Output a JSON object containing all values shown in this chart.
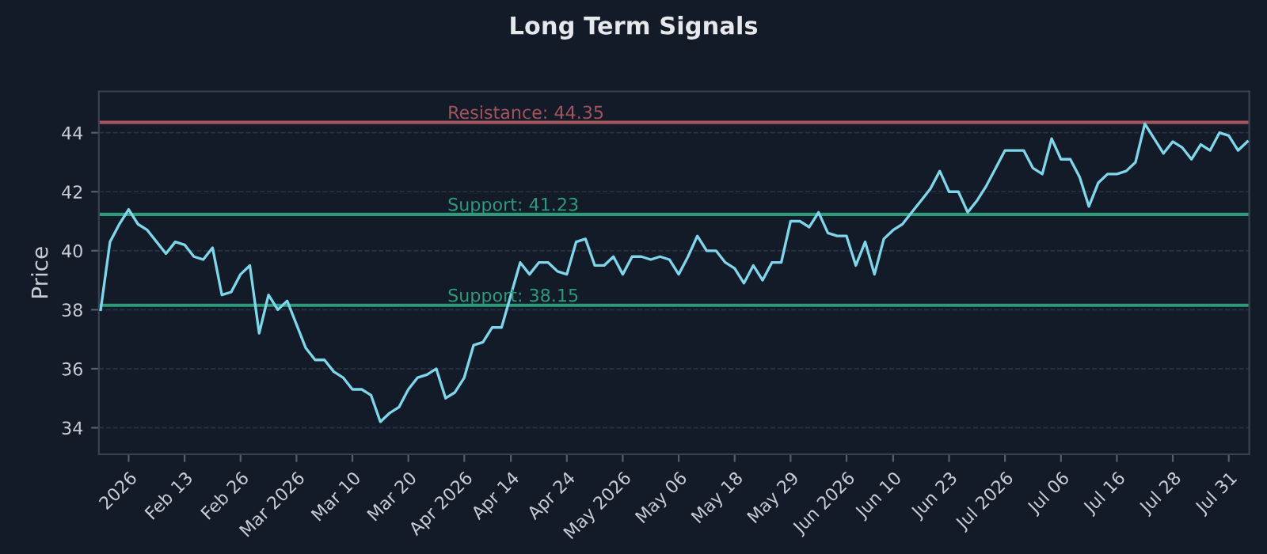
{
  "chart_data": {
    "type": "line",
    "title": "Long Term Signals",
    "ylabel": "Price",
    "categories": [
      null,
      null,
      null,
      "2026",
      null,
      null,
      null,
      null,
      null,
      "Feb 13",
      null,
      null,
      null,
      null,
      null,
      "Feb 26",
      null,
      null,
      null,
      null,
      null,
      "Mar 2026",
      null,
      null,
      null,
      null,
      null,
      "Mar 10",
      null,
      null,
      null,
      null,
      null,
      "Mar 20",
      null,
      null,
      null,
      null,
      null,
      "Apr 2026",
      null,
      null,
      null,
      null,
      "Apr 14",
      null,
      null,
      null,
      null,
      null,
      "Apr 24",
      null,
      null,
      null,
      null,
      null,
      "May 2026",
      null,
      null,
      null,
      null,
      null,
      "May 06",
      null,
      null,
      null,
      null,
      null,
      "May 18",
      null,
      null,
      null,
      null,
      null,
      "May 29",
      null,
      null,
      null,
      null,
      null,
      "Jun 2026",
      null,
      null,
      null,
      null,
      "Jun 10",
      null,
      null,
      null,
      null,
      null,
      "Jun 23",
      null,
      null,
      null,
      null,
      null,
      "Jul 2026",
      null,
      null,
      null,
      null,
      null,
      "Jul 06",
      null,
      null,
      null,
      null,
      null,
      "Jul 16",
      null,
      null,
      null,
      null,
      null,
      "Jul 28",
      null,
      null,
      null,
      null,
      null,
      "Jul 31",
      null,
      null
    ],
    "series": [
      {
        "color": "#7fd6ea",
        "values": [
          38.0,
          40.3,
          40.9,
          41.4,
          40.9,
          40.7,
          40.3,
          39.9,
          40.3,
          40.2,
          39.8,
          39.7,
          40.1,
          38.5,
          38.6,
          39.2,
          39.5,
          37.2,
          38.5,
          38.0,
          38.3,
          37.5,
          36.7,
          36.3,
          36.3,
          35.9,
          35.7,
          35.3,
          35.3,
          35.1,
          34.2,
          34.5,
          34.7,
          35.3,
          35.7,
          35.8,
          36.0,
          35.0,
          35.2,
          35.7,
          36.8,
          36.9,
          37.4,
          37.4,
          38.5,
          39.6,
          39.2,
          39.6,
          39.6,
          39.3,
          39.2,
          40.3,
          40.4,
          39.5,
          39.5,
          39.8,
          39.2,
          39.8,
          39.8,
          39.7,
          39.8,
          39.7,
          39.2,
          39.8,
          40.5,
          40.0,
          40.0,
          39.6,
          39.4,
          38.9,
          39.5,
          39.0,
          39.6,
          39.6,
          41.0,
          41.0,
          40.8,
          41.3,
          40.6,
          40.5,
          40.5,
          39.5,
          40.3,
          39.2,
          40.4,
          40.7,
          40.9,
          41.3,
          41.7,
          42.1,
          42.7,
          42.0,
          42.0,
          41.3,
          41.7,
          42.2,
          42.8,
          43.4,
          43.4,
          43.4,
          42.8,
          42.6,
          43.8,
          43.1,
          43.1,
          42.5,
          41.5,
          42.3,
          42.6,
          42.6,
          42.7,
          43.0,
          44.3,
          43.8,
          43.3,
          43.7,
          43.5,
          43.1,
          43.6,
          43.4,
          44.0,
          43.9,
          43.4,
          43.7
        ]
      }
    ],
    "ylim": [
      33.1,
      45.4
    ],
    "yticks": [
      34,
      36,
      38,
      40,
      42,
      44
    ],
    "grid": "y",
    "line_style": "solid",
    "ref_lines": [
      {
        "axis": "y",
        "value": 44.35,
        "label": "Resistance: 44.35",
        "color": "#a3545c"
      },
      {
        "axis": "y",
        "value": 41.23,
        "label": "Support: 41.23",
        "color": "#2e9a7a"
      },
      {
        "axis": "y",
        "value": 38.15,
        "label": "Support: 38.15",
        "color": "#2e9a7a"
      }
    ]
  }
}
